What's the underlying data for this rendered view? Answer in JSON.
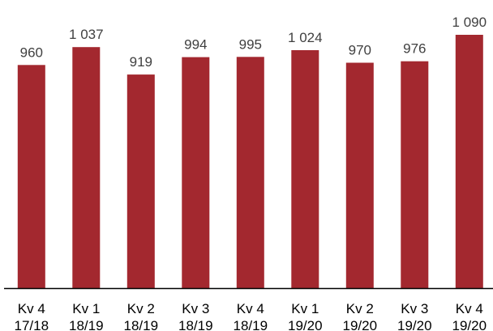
{
  "chart_data": {
    "type": "bar",
    "categories": [
      [
        "Kv 4",
        "17/18"
      ],
      [
        "Kv 1",
        "18/19"
      ],
      [
        "Kv 2",
        "18/19"
      ],
      [
        "Kv 3",
        "18/19"
      ],
      [
        "Kv 4",
        "18/19"
      ],
      [
        "Kv 1",
        "19/20"
      ],
      [
        "Kv 2",
        "19/20"
      ],
      [
        "Kv 3",
        "19/20"
      ],
      [
        "Kv 4",
        "19/20"
      ]
    ],
    "values": [
      960,
      1037,
      919,
      994,
      995,
      1024,
      970,
      976,
      1090
    ],
    "value_labels": [
      "960",
      "1 037",
      "919",
      "994",
      "995",
      "1 024",
      "970",
      "976",
      "1 090"
    ],
    "title": "",
    "xlabel": "",
    "ylabel": "",
    "ylim": [
      0,
      1090
    ],
    "grid": false,
    "legend": "none",
    "bar_color": "#a3282f",
    "axis_color": "#000000",
    "label_color": "#404040"
  }
}
